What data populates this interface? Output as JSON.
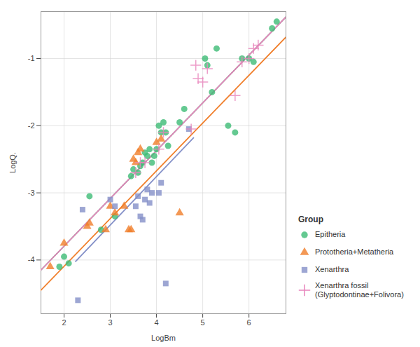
{
  "chart_data": {
    "type": "scatter",
    "xlabel": "LogBm",
    "ylabel": "LogQ.",
    "xlim": [
      1.5,
      6.8
    ],
    "ylim": [
      -4.8,
      -0.3
    ],
    "xticks": [
      2,
      3,
      4,
      5,
      6
    ],
    "yticks": [
      -4,
      -3,
      -2,
      -1
    ],
    "grid": true,
    "legend": "lower right",
    "legend_title": "Group",
    "series": [
      {
        "name": "Epitheria",
        "color": "#3DBB75",
        "marker": "circle",
        "x": [
          1.9,
          2.0,
          2.1,
          2.55,
          2.8,
          3.1,
          3.45,
          3.5,
          3.6,
          3.65,
          3.7,
          3.75,
          3.8,
          3.85,
          3.9,
          3.95,
          4.0,
          4.05,
          4.1,
          4.15,
          4.2,
          4.25,
          4.5,
          4.6,
          5.05,
          5.1,
          5.2,
          5.3,
          5.55,
          5.7,
          5.85,
          6.0,
          6.1,
          6.5,
          6.6
        ],
        "values": [
          -4.1,
          -3.95,
          -4.05,
          -3.05,
          -3.55,
          -3.35,
          -2.75,
          -2.65,
          -2.7,
          -2.6,
          -2.55,
          -2.4,
          -2.45,
          -2.35,
          -2.55,
          -2.45,
          -2.35,
          -2.0,
          -2.1,
          -1.95,
          -2.1,
          -2.3,
          -1.95,
          -1.75,
          -1.0,
          -1.1,
          -1.5,
          -0.85,
          -2.0,
          -2.1,
          -1.0,
          -1.0,
          -1.05,
          -0.55,
          -0.45
        ],
        "line_x": [
          1.5,
          6.8
        ],
        "line_y": [
          -4.15,
          -0.38
        ]
      },
      {
        "name": "Prototheria+Metatheria",
        "color": "#F07E2A",
        "marker": "triangle",
        "x": [
          1.7,
          2.0,
          2.5,
          2.55,
          2.9,
          3.0,
          3.1,
          3.3,
          3.4,
          3.45,
          3.5,
          3.55,
          3.6,
          3.65,
          4.0,
          4.1,
          4.5
        ],
        "values": [
          -4.1,
          -3.75,
          -3.5,
          -3.45,
          -3.55,
          -3.2,
          -3.3,
          -3.2,
          -3.55,
          -3.55,
          -2.5,
          -2.55,
          -2.4,
          -2.35,
          -2.25,
          -2.2,
          -3.3
        ],
        "line_x": [
          1.5,
          6.8
        ],
        "line_y": [
          -4.45,
          -0.68
        ]
      },
      {
        "name": "Xenarthra",
        "color": "#8490C8",
        "marker": "square",
        "x": [
          2.3,
          2.4,
          3.0,
          3.1,
          3.55,
          3.6,
          3.65,
          3.7,
          3.75,
          3.8,
          3.85,
          3.9,
          4.05,
          4.1,
          4.2,
          4.7
        ],
        "values": [
          -4.6,
          -3.25,
          -3.1,
          -3.2,
          -3.2,
          -3.05,
          -3.35,
          -3.4,
          -3.1,
          -2.95,
          -3.15,
          -3.0,
          -3.0,
          -2.85,
          -4.35,
          -2.05
        ],
        "line_x": [
          2.25,
          4.8
        ],
        "line_y": [
          -4.02,
          -2.18
        ]
      },
      {
        "name": "Xenarthra fossil\n(Glyptodontinae+Folivora)",
        "color": "#E884BC",
        "marker": "plus",
        "x": [
          3.55,
          3.65,
          3.75,
          4.05,
          4.15,
          4.75,
          4.85,
          4.9,
          5.0,
          5.1,
          5.7,
          5.85,
          6.0,
          6.1,
          6.2
        ],
        "values": [
          -2.7,
          -2.55,
          -2.55,
          -2.35,
          -2.1,
          -2.05,
          -1.1,
          -1.3,
          -1.35,
          -1.15,
          -1.55,
          -1.05,
          -1.0,
          -0.85,
          -0.8
        ],
        "line_x": [
          1.5,
          6.8
        ],
        "line_y": [
          -4.15,
          -0.38
        ]
      }
    ]
  }
}
